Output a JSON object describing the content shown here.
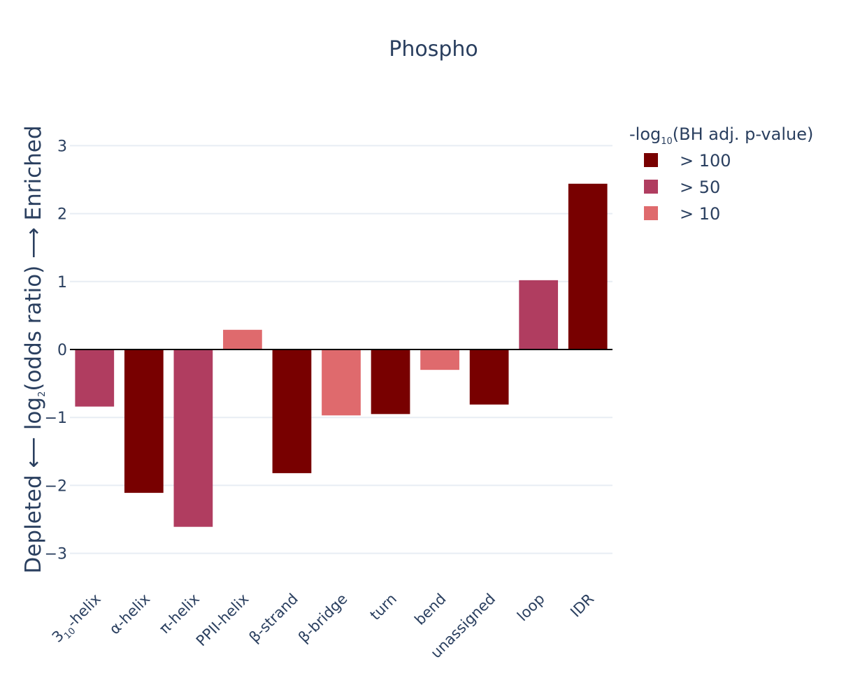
{
  "chart_data": {
    "type": "bar",
    "title": "Phospho",
    "ylabel": {
      "left": "Depleted ⟵ log",
      "sub": "2",
      "right": "(odds ratio) ⟶ Enriched"
    },
    "xlabel": "",
    "ylim": [
      -3.45,
      3.35
    ],
    "yticks": [
      3,
      2,
      1,
      0,
      -1,
      -2,
      -3
    ],
    "yticklabels": [
      "3",
      "2",
      "1",
      "0",
      "−1",
      "−2",
      "−3"
    ],
    "grid": true,
    "legend_position": "top-right",
    "legend": {
      "title_prefix": "-log",
      "title_sub": "10",
      "title_suffix": "(BH adj. p-value)",
      "items": [
        {
          "label": "> 100",
          "color": "#780000"
        },
        {
          "label": "> 50",
          "color": "#b03d60"
        },
        {
          "label": "> 10",
          "color": "#df6a6d"
        }
      ]
    },
    "categories": [
      {
        "label": "3",
        "sub": "10",
        "suffix": "-helix",
        "value": -0.84,
        "level": 1
      },
      {
        "label": "α-helix",
        "value": -2.11,
        "level": 0
      },
      {
        "label": "π-helix",
        "value": -2.61,
        "level": 1
      },
      {
        "label": "PPII-helix",
        "value": 0.29,
        "level": 2
      },
      {
        "label": "β-strand",
        "value": -1.82,
        "level": 0
      },
      {
        "label": "β-bridge",
        "value": -0.97,
        "level": 2
      },
      {
        "label": "turn",
        "value": -0.95,
        "level": 0
      },
      {
        "label": "bend",
        "value": -0.3,
        "level": 2
      },
      {
        "label": "unassigned",
        "value": -0.81,
        "level": 0
      },
      {
        "label": "loop",
        "value": 1.02,
        "level": 1
      },
      {
        "label": "IDR",
        "value": 2.44,
        "level": 0
      }
    ]
  }
}
